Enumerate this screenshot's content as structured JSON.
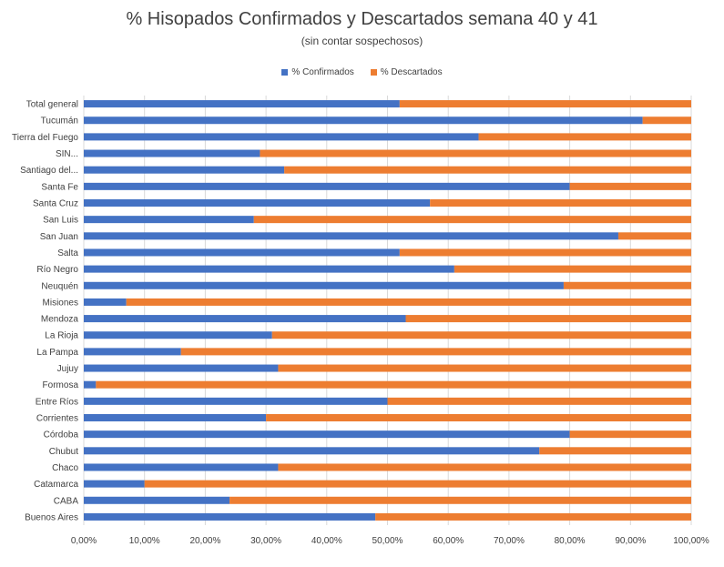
{
  "chart_data": {
    "type": "bar",
    "orientation": "horizontal",
    "stacked": true,
    "title": "% Hisopados Confirmados y Descartados semana 40 y 41",
    "subtitle": "(sin contar sospechosos)",
    "categories": [
      "Total general",
      "Tucumán",
      "Tierra del Fuego",
      "SIN...",
      "Santiago del...",
      "Santa Fe",
      "Santa Cruz",
      "San Luis",
      "San Juan",
      "Salta",
      "Río Negro",
      "Neuquén",
      "Misiones",
      "Mendoza",
      "La Rioja",
      "La Pampa",
      "Jujuy",
      "Formosa",
      "Entre Ríos",
      "Corrientes",
      "Córdoba",
      "Chubut",
      "Chaco",
      "Catamarca",
      "CABA",
      "Buenos Aires"
    ],
    "series": [
      {
        "name": "% Confirmados",
        "color": "#4472C4",
        "values": [
          0.52,
          0.92,
          0.65,
          0.29,
          0.33,
          0.8,
          0.57,
          0.28,
          0.88,
          0.52,
          0.61,
          0.79,
          0.07,
          0.53,
          0.31,
          0.16,
          0.32,
          0.02,
          0.5,
          0.3,
          0.8,
          0.75,
          0.32,
          0.1,
          0.24,
          0.48
        ]
      },
      {
        "name": "% Descartados",
        "color": "#ED7D31",
        "values": [
          0.48,
          0.08,
          0.35,
          0.71,
          0.67,
          0.2,
          0.43,
          0.72,
          0.12,
          0.48,
          0.39,
          0.21,
          0.93,
          0.47,
          0.69,
          0.84,
          0.68,
          0.98,
          0.5,
          0.7,
          0.2,
          0.25,
          0.68,
          0.9,
          0.76,
          0.52
        ]
      }
    ],
    "xlim": [
      0,
      1
    ],
    "x_ticks": [
      "0,00%",
      "10,00%",
      "20,00%",
      "30,00%",
      "40,00%",
      "50,00%",
      "60,00%",
      "70,00%",
      "80,00%",
      "90,00%",
      "100,00%"
    ],
    "grid": true,
    "legend_position": "top"
  }
}
